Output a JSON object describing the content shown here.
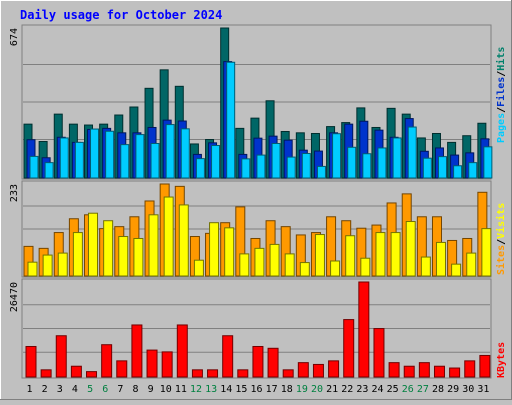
{
  "chart_data": {
    "type": "bar",
    "title": "Daily usage for October 2024",
    "categories": [
      "1",
      "2",
      "3",
      "4",
      "5",
      "6",
      "7",
      "8",
      "9",
      "10",
      "11",
      "12",
      "13",
      "14",
      "15",
      "16",
      "17",
      "18",
      "19",
      "20",
      "21",
      "22",
      "23",
      "24",
      "25",
      "26",
      "27",
      "28",
      "29",
      "30",
      "31"
    ],
    "weekend_days": [
      "5",
      "6",
      "12",
      "13",
      "19",
      "20",
      "26",
      "27"
    ],
    "panels": [
      {
        "id": "hits-files-pages",
        "y_max_label": "674",
        "ylim": [
          0,
          674
        ],
        "series": [
          {
            "name": "Hits",
            "color": "#006666",
            "values": [
              242,
              164,
              287,
              242,
              238,
              242,
              283,
              319,
              403,
              486,
              412,
              153,
              173,
              674,
              223,
              269,
              347,
              209,
              203,
              200,
              231,
              249,
              315,
              227,
              313,
              287,
              180,
              200,
              160,
              190,
              246
            ]
          },
          {
            "name": "Files",
            "color": "#0033cc",
            "values": [
              172,
              91,
              183,
              160,
              218,
              223,
              203,
              203,
              227,
              260,
              256,
              106,
              158,
              523,
              106,
              179,
              188,
              170,
              125,
              121,
              203,
              242,
              255,
              215,
              183,
              267,
              120,
              135,
              103,
              113,
              176
            ]
          },
          {
            "name": "Pages",
            "color": "#00ccff",
            "values": [
              97,
              69,
              180,
              160,
              220,
              210,
              150,
              195,
              155,
              240,
              221,
              87,
              146,
              520,
              86,
              103,
              155,
              94,
              110,
              52,
              199,
              138,
              109,
              135,
              180,
              229,
              89,
              96,
              55,
              69,
              140
            ]
          }
        ],
        "legend_labels": [
          "Pages",
          "/",
          "Files",
          "/",
          "Hits"
        ]
      },
      {
        "id": "visits-sites",
        "y_max_label": "233",
        "ylim": [
          0,
          233
        ],
        "series": [
          {
            "name": "Visits",
            "color": "#ff9900",
            "values": [
              75,
              70,
              110,
              145,
              155,
              120,
              125,
              150,
              190,
              233,
              227,
              100,
              108,
              135,
              175,
              95,
              140,
              125,
              104,
              110,
              150,
              140,
              121,
              129,
              185,
              208,
              150,
              150,
              90,
              95,
              212
            ]
          },
          {
            "name": "Sites",
            "color": "#ffff00",
            "values": [
              35,
              53,
              58,
              110,
              159,
              140,
              100,
              95,
              155,
              200,
              180,
              40,
              135,
              122,
              56,
              70,
              80,
              56,
              34,
              105,
              38,
              102,
              45,
              110,
              110,
              138,
              48,
              85,
              30,
              58,
              120
            ]
          }
        ],
        "legend_labels": [
          "Sites",
          "/",
          "Visits"
        ]
      },
      {
        "id": "kbytes",
        "y_max_label": "26470",
        "ylim": [
          0,
          26470
        ],
        "series": [
          {
            "name": "KBytes",
            "color": "#ff0000",
            "values": [
              8500,
              2000,
              11500,
              3000,
              1500,
              9000,
              4500,
              14500,
              7500,
              7000,
              14500,
              2000,
              2000,
              11500,
              2000,
              8500,
              8000,
              2000,
              4000,
              3500,
              4500,
              16000,
              26470,
              13500,
              4000,
              3000,
              4000,
              3000,
              2500,
              4500,
              6000
            ]
          }
        ],
        "legend_labels": [
          "KBytes"
        ]
      }
    ]
  }
}
